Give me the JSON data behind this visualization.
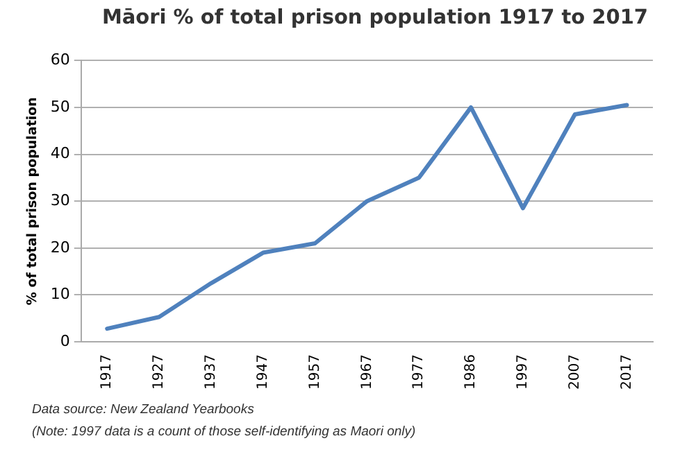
{
  "chart_data": {
    "type": "line",
    "title": "Māori % of total prison population 1917 to 2017",
    "ylabel": "% of total prison population",
    "categories": [
      "1917",
      "1927",
      "1937",
      "1947",
      "1957",
      "1967",
      "1977",
      "1986",
      "1997",
      "2007",
      "2017"
    ],
    "series": [
      {
        "color": "#4f81bd",
        "values": [
          2.8,
          5.3,
          12.5,
          19,
          21,
          30,
          35,
          50,
          28.5,
          48.5,
          50.5
        ]
      }
    ],
    "ylim": [
      0,
      60
    ],
    "yticks": [
      0,
      10,
      20,
      30,
      40,
      50,
      60
    ],
    "grid": "y",
    "legend": false,
    "marker": "none",
    "line_style": "solid",
    "annotations": [
      "Data source: New Zealand Yearbooks",
      "(Note: 1997 data is a count of those self-identifying as Maori only)"
    ]
  }
}
